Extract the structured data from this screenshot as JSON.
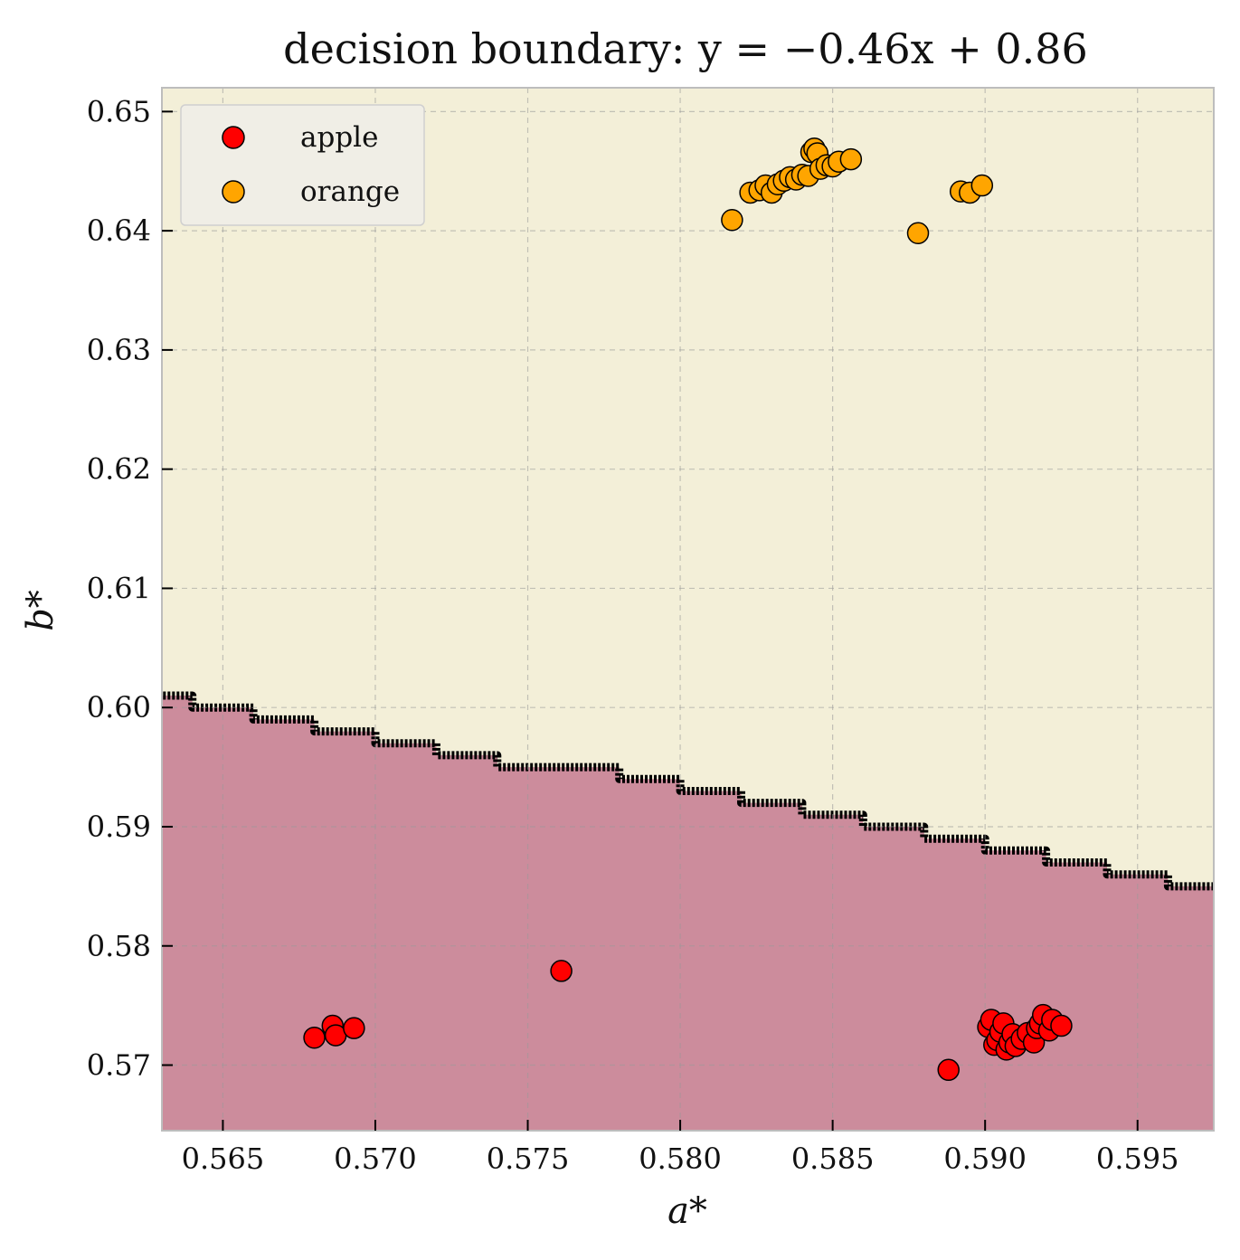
{
  "chart_data": {
    "type": "scatter",
    "title": "decision boundary: y = −0.46x + 0.86",
    "xlabel": "a*",
    "ylabel": "b*",
    "xlim": [
      0.563,
      0.5975
    ],
    "ylim": [
      0.5645,
      0.652
    ],
    "xticks": [
      "0.565",
      "0.570",
      "0.575",
      "0.580",
      "0.585",
      "0.590",
      "0.595"
    ],
    "yticks": [
      "0.57",
      "0.58",
      "0.59",
      "0.60",
      "0.61",
      "0.62",
      "0.63",
      "0.64",
      "0.65"
    ],
    "grid": true,
    "legend_position": "top-left",
    "boundary": {
      "slope": -0.46,
      "intercept": 0.86,
      "step": 0.002,
      "below_color": "#cc8c9c",
      "above_color": "#f3efd8"
    },
    "series": [
      {
        "name": "apple",
        "color": "#ff0000",
        "points": [
          [
            0.568,
            0.5723
          ],
          [
            0.5686,
            0.5733
          ],
          [
            0.5687,
            0.5725
          ],
          [
            0.5693,
            0.5731
          ],
          [
            0.5761,
            0.5779
          ],
          [
            0.5888,
            0.5696
          ],
          [
            0.5901,
            0.5732
          ],
          [
            0.5902,
            0.5738
          ],
          [
            0.5903,
            0.5717
          ],
          [
            0.5904,
            0.5721
          ],
          [
            0.5905,
            0.5728
          ],
          [
            0.5906,
            0.5735
          ],
          [
            0.5907,
            0.5713
          ],
          [
            0.5908,
            0.5719
          ],
          [
            0.5909,
            0.5726
          ],
          [
            0.591,
            0.5716
          ],
          [
            0.5912,
            0.5722
          ],
          [
            0.5914,
            0.5727
          ],
          [
            0.5916,
            0.5719
          ],
          [
            0.5917,
            0.5731
          ],
          [
            0.5918,
            0.5735
          ],
          [
            0.5919,
            0.5742
          ],
          [
            0.5921,
            0.5729
          ],
          [
            0.5922,
            0.5738
          ],
          [
            0.5925,
            0.5733
          ]
        ]
      },
      {
        "name": "orange",
        "color": "#ffa500",
        "points": [
          [
            0.5817,
            0.6409
          ],
          [
            0.5823,
            0.6432
          ],
          [
            0.5826,
            0.6434
          ],
          [
            0.5828,
            0.6438
          ],
          [
            0.583,
            0.6432
          ],
          [
            0.5832,
            0.6439
          ],
          [
            0.5834,
            0.6442
          ],
          [
            0.5836,
            0.6445
          ],
          [
            0.5838,
            0.6443
          ],
          [
            0.584,
            0.6447
          ],
          [
            0.5842,
            0.6446
          ],
          [
            0.5843,
            0.6466
          ],
          [
            0.5844,
            0.6469
          ],
          [
            0.5845,
            0.6465
          ],
          [
            0.5846,
            0.6452
          ],
          [
            0.5848,
            0.6455
          ],
          [
            0.585,
            0.6454
          ],
          [
            0.5852,
            0.6458
          ],
          [
            0.5856,
            0.646
          ],
          [
            0.5878,
            0.6398
          ],
          [
            0.5892,
            0.6433
          ],
          [
            0.5895,
            0.6432
          ],
          [
            0.5899,
            0.6438
          ]
        ]
      }
    ]
  }
}
